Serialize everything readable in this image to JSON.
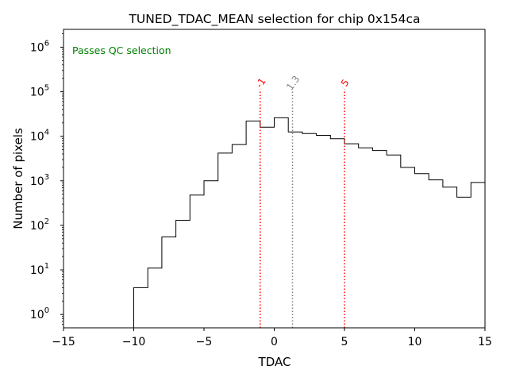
{
  "chart_data": {
    "type": "histogram",
    "title": "TUNED_TDAC_MEAN selection for chip 0x154ca",
    "xlabel": "TDAC",
    "ylabel": "Number of pixels",
    "xlim": [
      -15,
      15
    ],
    "ylim_log10": [
      -0.3,
      6.4
    ],
    "y_scale": "log",
    "x_ticks": [
      -15,
      -10,
      -5,
      0,
      5,
      10,
      15
    ],
    "x_tick_labels": [
      "−15",
      "−10",
      "−5",
      "0",
      "5",
      "10",
      "15"
    ],
    "y_ticks": [
      {
        "base": "10",
        "exp": "0"
      },
      {
        "base": "10",
        "exp": "1"
      },
      {
        "base": "10",
        "exp": "2"
      },
      {
        "base": "10",
        "exp": "3"
      },
      {
        "base": "10",
        "exp": "4"
      },
      {
        "base": "10",
        "exp": "5"
      },
      {
        "base": "10",
        "exp": "6"
      }
    ],
    "y_tick_values": [
      0,
      1,
      2,
      3,
      4,
      5,
      6
    ],
    "bins": {
      "edges": [
        -10,
        -9,
        -8,
        -7,
        -6,
        -5,
        -4,
        -3,
        -2,
        -1,
        0,
        1,
        2,
        3,
        4,
        5,
        6,
        7,
        8,
        9,
        10,
        11,
        12,
        13,
        14,
        15
      ],
      "counts": [
        4,
        11,
        55,
        130,
        480,
        1000,
        4200,
        6500,
        22000,
        16000,
        26000,
        12500,
        11500,
        10500,
        8800,
        6800,
        5500,
        4800,
        3800,
        2000,
        1450,
        1050,
        720,
        430,
        920
      ]
    },
    "annotation": {
      "text": "Passes QC selection",
      "color": "#008000"
    },
    "vlines": [
      {
        "x": -1,
        "label": "-1",
        "color": "#ff0000"
      },
      {
        "x": 1.3,
        "label": "1.3",
        "color": "#808080"
      },
      {
        "x": 5,
        "label": "5",
        "color": "#ff0000"
      }
    ],
    "vline_top_log10": 5.05
  }
}
